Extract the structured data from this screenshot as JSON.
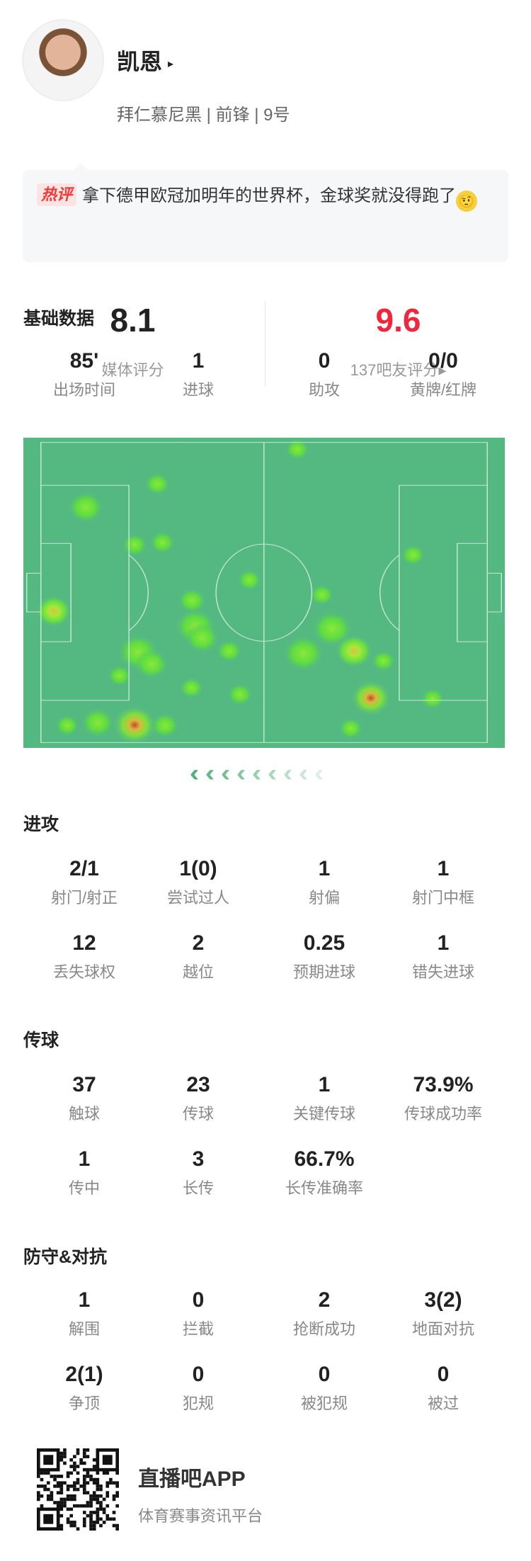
{
  "player": {
    "name": "凯恩",
    "name_arrow": "▸",
    "info": "拜仁慕尼黑 | 前锋 | 9号"
  },
  "comment": {
    "tag": "热评",
    "text": "拿下德甲欧冠加明年的世界杯，金球奖就没得跑了",
    "emoji": "🤨"
  },
  "ratings": {
    "media_score": "8.1",
    "media_label": "媒体评分",
    "fan_score": "9.6",
    "fan_label": "137吧友评分▸",
    "fan_color": "#f0263c"
  },
  "basic": {
    "title": "基础数据",
    "items": [
      {
        "v": "85'",
        "l": "出场时间"
      },
      {
        "v": "1",
        "l": "进球"
      },
      {
        "v": "0",
        "l": "助攻"
      },
      {
        "v": "0/0",
        "l": "黄牌/红牌"
      }
    ]
  },
  "heatmap": {
    "pitch_color": "#54b981",
    "attack_direction": "left"
  },
  "attack": {
    "title": "进攻",
    "items": [
      {
        "v": "2/1",
        "l": "射门/射正"
      },
      {
        "v": "1(0)",
        "l": "尝试过人"
      },
      {
        "v": "1",
        "l": "射偏"
      },
      {
        "v": "1",
        "l": "射门中框"
      },
      {
        "v": "12",
        "l": "丢失球权"
      },
      {
        "v": "2",
        "l": "越位"
      },
      {
        "v": "0.25",
        "l": "预期进球"
      },
      {
        "v": "1",
        "l": "错失进球"
      }
    ]
  },
  "passing": {
    "title": "传球",
    "items": [
      {
        "v": "37",
        "l": "触球"
      },
      {
        "v": "23",
        "l": "传球"
      },
      {
        "v": "1",
        "l": "关键传球"
      },
      {
        "v": "73.9%",
        "l": "传球成功率"
      },
      {
        "v": "1",
        "l": "传中"
      },
      {
        "v": "3",
        "l": "长传"
      },
      {
        "v": "66.7%",
        "l": "长传准确率"
      }
    ]
  },
  "defense": {
    "title": "防守&对抗",
    "items": [
      {
        "v": "1",
        "l": "解围"
      },
      {
        "v": "0",
        "l": "拦截"
      },
      {
        "v": "2",
        "l": "抢断成功"
      },
      {
        "v": "3(2)",
        "l": "地面对抗"
      },
      {
        "v": "2(1)",
        "l": "争顶"
      },
      {
        "v": "0",
        "l": "犯规"
      },
      {
        "v": "0",
        "l": "被犯规"
      },
      {
        "v": "0",
        "l": "被过"
      }
    ]
  },
  "footer": {
    "app_name": "直播吧APP",
    "slogan": "体育赛事资讯平台"
  }
}
